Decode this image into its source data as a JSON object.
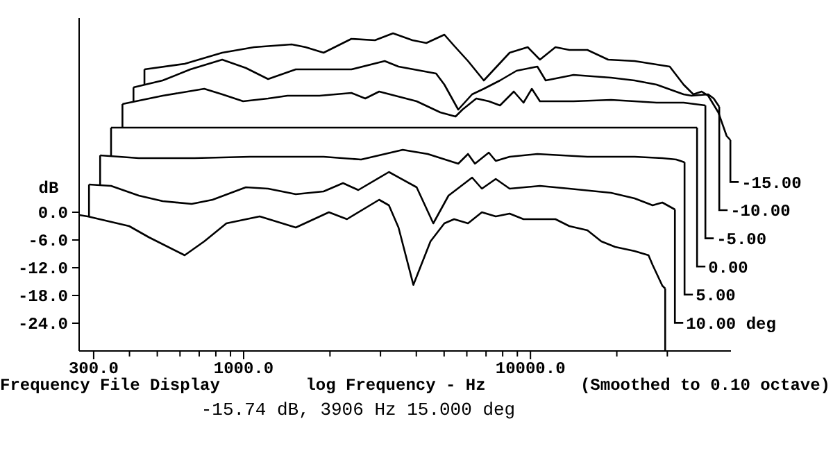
{
  "chart_data": {
    "type": "line",
    "xlabel": "log Frequency - Hz",
    "ylabel": "dB",
    "log": "x",
    "xlim": [
      267,
      50000
    ],
    "ylim": [
      -30,
      42
    ],
    "xticks": [
      {
        "value": 300,
        "label": "300.0"
      },
      {
        "value": 400,
        "label": null
      },
      {
        "value": 500,
        "label": null
      },
      {
        "value": 600,
        "label": null
      },
      {
        "value": 700,
        "label": null
      },
      {
        "value": 800,
        "label": null
      },
      {
        "value": 900,
        "label": null
      },
      {
        "value": 1000,
        "label": "1000.0"
      },
      {
        "value": 2000,
        "label": null
      },
      {
        "value": 3000,
        "label": null
      },
      {
        "value": 4000,
        "label": null
      },
      {
        "value": 5000,
        "label": null
      },
      {
        "value": 6000,
        "label": null
      },
      {
        "value": 7000,
        "label": null
      },
      {
        "value": 8000,
        "label": null
      },
      {
        "value": 9000,
        "label": null
      },
      {
        "value": 10000,
        "label": "10000.0"
      },
      {
        "value": 20000,
        "label": null
      },
      {
        "value": 30000,
        "label": null
      }
    ],
    "yticks": [
      {
        "value": 0,
        "label": "0.0"
      },
      {
        "value": -6,
        "label": "-6.0"
      },
      {
        "value": -12,
        "label": "-12.0"
      },
      {
        "value": -18,
        "label": "-18.0"
      },
      {
        "value": -24,
        "label": "-24.0"
      }
    ],
    "grid": false,
    "legend": "right",
    "annotations": [
      "Frequency File Display",
      "(Smoothed to 0.10 octave)",
      "-15.74 dB, 3906 Hz 15.000 deg"
    ],
    "series": [
      {
        "color": "#000000",
        "x": [
          267,
          286,
          399,
          467,
          623,
          729,
          871,
          1138,
          1520,
          1983,
          2292,
          2968,
          3210,
          3467,
          3906,
          4482,
          5010,
          5418,
          6057,
          6771,
          7568,
          8460,
          9458,
          12220,
          13660,
          15790,
          17660,
          19740,
          23070,
          25790,
          26660,
          28830,
          29490
        ],
        "values": [
          -0.6,
          -0.9,
          -3.0,
          -5.4,
          -9.3,
          -6.3,
          -2.4,
          -0.9,
          -3.3,
          0,
          -1.5,
          2.7,
          1.5,
          -3.3,
          -15.7,
          -6.3,
          -2.4,
          -1.5,
          -2.4,
          0,
          -0.9,
          -0.3,
          -1.5,
          -1.5,
          -3.0,
          -3.9,
          -6.3,
          -7.5,
          -8.4,
          -9.3,
          -11.4,
          -15.9,
          -16.5
        ]
      },
      {
        "name": "10.00 deg",
        "color": "#000000",
        "x": [
          289,
          345,
          431,
          522,
          659,
          779,
          1018,
          1217,
          1520,
          1900,
          2221,
          2510,
          3210,
          4010,
          4584,
          5180,
          6260,
          6771,
          7568,
          8460,
          10790,
          13660,
          19090,
          23070,
          26660,
          28830,
          31880
        ],
        "values": [
          6.0,
          5.7,
          3.6,
          2.4,
          1.8,
          2.7,
          5.4,
          5.1,
          3.9,
          4.5,
          6.3,
          4.8,
          8.7,
          5.4,
          -2.4,
          3.6,
          7.5,
          5.1,
          7.2,
          5.1,
          5.7,
          5.1,
          4.2,
          3.0,
          1.5,
          2.1,
          0.6
        ]
      },
      {
        "name": "5.00",
        "color": "#000000",
        "x": [
          316,
          431,
          674,
          1053,
          1900,
          2568,
          3587,
          4383,
          5600,
          6057,
          6404,
          7157,
          7568,
          8460,
          10570,
          15790,
          23070,
          28830,
          32230,
          34450
        ],
        "values": [
          12.3,
          11.7,
          11.7,
          12.0,
          12.0,
          11.4,
          13.5,
          12.6,
          10.5,
          12.6,
          10.5,
          12.9,
          11.1,
          12.0,
          12.6,
          12.0,
          12.0,
          11.7,
          11.4,
          10.8
        ]
      },
      {
        "name": "0.00",
        "color": "#000000",
        "x": [
          345,
          38090
        ],
        "values": [
          18.3,
          18.3
        ]
      },
      {
        "name": "-5.00",
        "color": "#000000",
        "x": [
          378,
          522,
          729,
          842,
          996,
          1217,
          1422,
          1838,
          2375,
          2655,
          2968,
          4010,
          4847,
          5479,
          5793,
          6475,
          7157,
          7830,
          8748,
          9458,
          10110,
          10790,
          14130,
          19090,
          23070,
          27510,
          34190,
          40720
        ],
        "values": [
          23.4,
          25.2,
          26.7,
          25.5,
          24.0,
          24.6,
          25.2,
          25.2,
          25.8,
          24.6,
          26.1,
          24.0,
          21.6,
          20.7,
          22.2,
          24.6,
          24.0,
          23.1,
          26.1,
          23.7,
          26.7,
          24.0,
          24.0,
          24.3,
          24.0,
          23.7,
          23.7,
          23.1
        ]
      },
      {
        "name": "-10.00",
        "color": "#000000",
        "x": [
          413,
          522,
          652,
          842,
          1018,
          1217,
          1520,
          2375,
          3103,
          3467,
          4688,
          5010,
          5600,
          6260,
          6876,
          7830,
          8944,
          10570,
          11300,
          14130,
          19090,
          23070,
          27510,
          34190,
          36420,
          41640,
          43530,
          45520
        ],
        "values": [
          27.0,
          28.5,
          30.9,
          33.0,
          31.2,
          28.8,
          30.9,
          30.9,
          32.7,
          31.5,
          30.0,
          27.6,
          22.2,
          25.5,
          26.7,
          28.5,
          30.6,
          31.5,
          28.5,
          29.7,
          29.1,
          28.5,
          27.6,
          25.5,
          25.2,
          25.5,
          24.6,
          22.8
        ]
      },
      {
        "name": "-15.00",
        "color": "#000000",
        "x": [
          451,
          623,
          842,
          1088,
          1471,
          1644,
          1900,
          2375,
          2870,
          3318,
          3878,
          4335,
          5010,
          5418,
          6057,
          6876,
          8460,
          9780,
          10790,
          12220,
          13660,
          15790,
          18660,
          23070,
          30590,
          34190,
          36970,
          39530,
          41640,
          45170,
          48300,
          49770
        ],
        "values": [
          30.9,
          32.1,
          34.5,
          35.7,
          36.3,
          35.7,
          34.5,
          37.5,
          37.2,
          38.7,
          37.2,
          36.6,
          38.4,
          36.0,
          32.7,
          28.5,
          34.5,
          35.7,
          33.0,
          35.7,
          35.1,
          35.1,
          33.0,
          32.7,
          31.5,
          27.6,
          25.5,
          26.1,
          25.2,
          21.6,
          16.5,
          15.6
        ]
      }
    ]
  }
}
